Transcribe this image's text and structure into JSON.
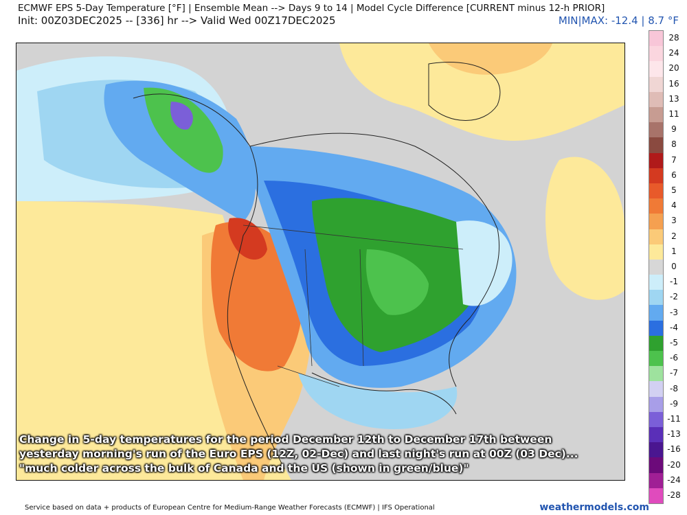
{
  "header": {
    "title_line1": "ECMWF EPS 5-Day Temperature [°F] | Ensemble Mean --> Days 9 to 14 | Model Cycle Difference [CURRENT minus 12-h PRIOR]",
    "title_line2": "Init: 00Z03DEC2025 -- [336] hr --> Valid Wed 00Z17DEC2025",
    "minmax": "MIN|MAX: -12.4 | 8.7 °F"
  },
  "caption": {
    "line1": "Change in 5-day temperatures for the period December 12th to December 17th between",
    "line2": "yesterday morning's run of the Euro EPS (12Z, 02-Dec) and last night's run at 00Z (03 Dec)...",
    "line3": "\"much colder across the bulk of Canada and the US (shown in green/blue)\""
  },
  "colorbar": {
    "labels": [
      "28",
      "24",
      "20",
      "16",
      "13",
      "11",
      "9",
      "8",
      "7",
      "6",
      "5",
      "4",
      "3",
      "2",
      "1",
      "0",
      "-1",
      "-2",
      "-3",
      "-4",
      "-5",
      "-6",
      "-7",
      "-8",
      "-9",
      "-11",
      "-13",
      "-16",
      "-20",
      "-24",
      "-28"
    ],
    "colors": [
      "#f8c6d8",
      "#fbd6df",
      "#fde6ea",
      "#f0d6d4",
      "#dfbcb6",
      "#c79c92",
      "#a8736a",
      "#8a4a40",
      "#b01a1a",
      "#d43a20",
      "#e85a2a",
      "#f07a36",
      "#f5a050",
      "#fbca78",
      "#fde99a",
      "#d7d7d7",
      "#cdeefa",
      "#9fd6f2",
      "#62aaf0",
      "#2b6fe0",
      "#2fa12f",
      "#4dc24d",
      "#9ee29e",
      "#d2d0f2",
      "#a89ee8",
      "#7b5fd8",
      "#5a2fb8",
      "#4a1690",
      "#6c0a7a",
      "#a01f95",
      "#e04bbd"
    ]
  },
  "map": {
    "region": "North America",
    "colors": {
      "land_neutral": "#cfcfcf",
      "ocean_neutral": "#d7d7d7",
      "warm_light": "#fde99a",
      "warm_mid": "#fbca78",
      "warm_strong": "#f07a36",
      "warm_max": "#d43a20",
      "cold_light": "#cdeefa",
      "cold_mid": "#9fd6f2",
      "cold_blue": "#62aaf0",
      "cold_strong": "#2b6fe0",
      "cold_green": "#2fa12f",
      "cold_green_light": "#4dc24d",
      "cold_min": "#7b5fd8"
    }
  },
  "footer": {
    "left": "Service based on data + products of European Centre for Medium-Range Weather Forecasts (ECMWF) | IFS Operational",
    "right": "weathermodels.com"
  }
}
